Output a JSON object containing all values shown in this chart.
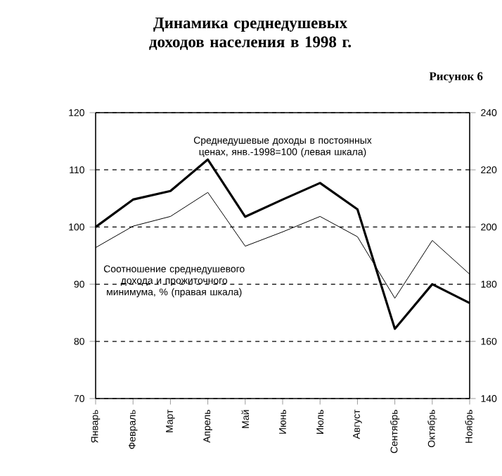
{
  "chart_data": {
    "type": "line",
    "title": "Динамика среднедушевых доходов населения в 1998 г.",
    "subtitle": "Рисунок 6",
    "categories": [
      "Январь",
      "Февраль",
      "Март",
      "Апрель",
      "Май",
      "Июнь",
      "Июль",
      "Август",
      "Сентябрь",
      "Октябрь",
      "Ноябрь"
    ],
    "series": [
      {
        "name": "Среднедушевые доходы в постоянных ценах, янв.-1998=100 (левая шкала)",
        "color": "#000000",
        "values": [
          100,
          104.8,
          106.3,
          111.8,
          101.8,
          104.8,
          107.7,
          103.1,
          82.2,
          90,
          86.7
        ]
      },
      {
        "name": "Соотношение среднедушевого дохода и прожиточного минимума, % (правая шкала)",
        "color": "#000000",
        "axis": "y2",
        "values": [
          192.8,
          200.3,
          203.7,
          212.1,
          193.3,
          198.3,
          203.7,
          196.6,
          175.1,
          195.3,
          183.5
        ]
      }
    ],
    "ylim": [
      70,
      120
    ],
    "yticks": [
      70,
      80,
      90,
      100,
      110,
      120
    ],
    "y2lim": [
      140,
      240
    ],
    "y2ticks": [
      140,
      160,
      180,
      200,
      220,
      240
    ],
    "grid": "y",
    "legend": false,
    "marker": "none",
    "line_style": "solid"
  }
}
